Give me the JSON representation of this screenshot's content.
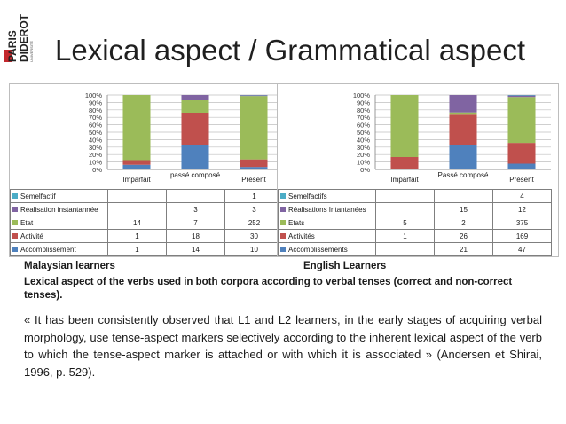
{
  "slide": {
    "title": "Lexical aspect / Grammatical aspect",
    "logo": {
      "line1": "PARIS",
      "line2": "DIDEROT",
      "small": "UNIVERSITÉ"
    },
    "caption_left": "Malaysian learners",
    "caption_right": "English Learners",
    "caption_main": "Lexical aspect of the verbs used in both corpora according to verbal tenses (correct and non-correct tenses).",
    "quote": "« It has been consistently observed that L1 and L2 learners, in the early stages of acquiring verbal morphology, use tense-aspect markers selectively according to the inherent lexical aspect of the verb to which the tense-aspect marker is attached or with which it is associated » (Andersen et Shirai, 1996, p. 529)."
  },
  "chart_data": [
    {
      "type": "bar",
      "stacked": "percent",
      "categories": [
        "Imparfait",
        "passé composé",
        "Présent"
      ],
      "y_ticks": [
        "0%",
        "10%",
        "20%",
        "30%",
        "40%",
        "50%",
        "60%",
        "70%",
        "80%",
        "90%",
        "100%"
      ],
      "ylim": [
        0,
        100
      ],
      "legend_placement": "data-table",
      "series": [
        {
          "name": "Semelfactif",
          "color": "#4bacc6",
          "values": [
            null,
            null,
            1
          ]
        },
        {
          "name": "Réalisation instantannée",
          "color": "#8064a2",
          "values": [
            null,
            3,
            3
          ]
        },
        {
          "name": "Etat",
          "color": "#9bbb59",
          "values": [
            14,
            7,
            252
          ]
        },
        {
          "name": "Activité",
          "color": "#c0504d",
          "values": [
            1,
            18,
            30
          ]
        },
        {
          "name": "Accomplissement",
          "color": "#4f81bd",
          "values": [
            1,
            14,
            10
          ]
        }
      ]
    },
    {
      "type": "bar",
      "stacked": "percent",
      "categories": [
        "Imparfait",
        "Passé composé",
        "Présent"
      ],
      "y_ticks": [
        "0%",
        "10%",
        "20%",
        "30%",
        "40%",
        "50%",
        "60%",
        "70%",
        "80%",
        "90%",
        "100%"
      ],
      "ylim": [
        0,
        100
      ],
      "legend_placement": "data-table",
      "series": [
        {
          "name": "Semelfactifs",
          "color": "#4bacc6",
          "values": [
            null,
            null,
            4
          ]
        },
        {
          "name": "Réalisations Intantanées",
          "color": "#8064a2",
          "values": [
            null,
            15,
            12
          ]
        },
        {
          "name": "Etats",
          "color": "#9bbb59",
          "values": [
            5,
            2,
            375
          ]
        },
        {
          "name": "Activités",
          "color": "#c0504d",
          "values": [
            1,
            26,
            169
          ]
        },
        {
          "name": "Accomplissements",
          "color": "#4f81bd",
          "values": [
            null,
            21,
            47
          ]
        }
      ]
    }
  ]
}
